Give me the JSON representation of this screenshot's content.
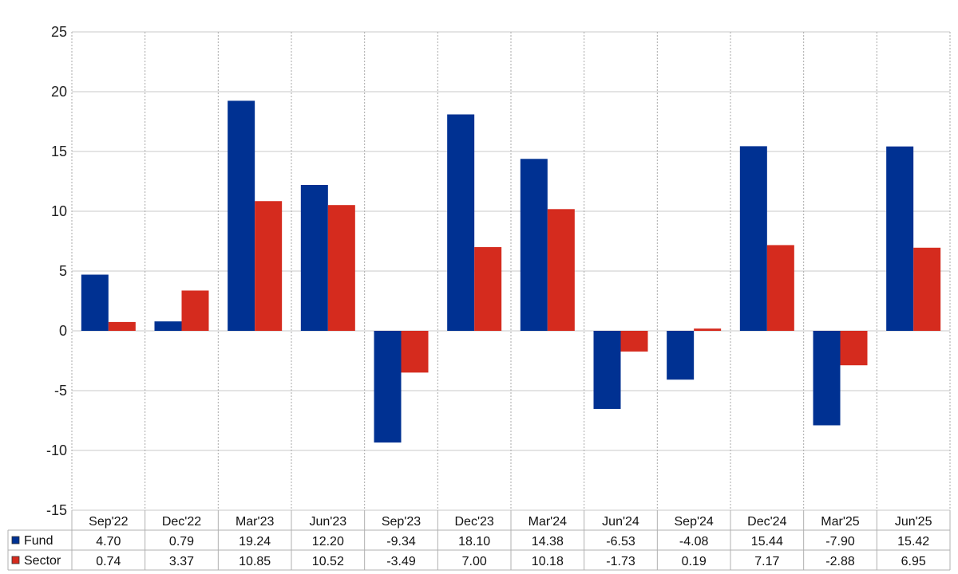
{
  "chart_data": {
    "type": "bar",
    "categories": [
      "Sep'22",
      "Dec'22",
      "Mar'23",
      "Jun'23",
      "Sep'23",
      "Dec'23",
      "Mar'24",
      "Jun'24",
      "Sep'24",
      "Dec'24",
      "Mar'25",
      "Jun'25"
    ],
    "series": [
      {
        "name": "Fund",
        "color": "#003192",
        "values": [
          4.7,
          0.79,
          19.24,
          12.2,
          -9.34,
          18.1,
          14.38,
          -6.53,
          -4.08,
          15.44,
          -7.9,
          15.42
        ],
        "labels": [
          "4.70",
          "0.79",
          "19.24",
          "12.20",
          "-9.34",
          "18.10",
          "14.38",
          "-6.53",
          "-4.08",
          "15.44",
          "-7.90",
          "15.42"
        ]
      },
      {
        "name": "Sector",
        "color": "#d52b1e",
        "values": [
          0.74,
          3.37,
          10.85,
          10.52,
          -3.49,
          7.0,
          10.18,
          -1.73,
          0.19,
          7.17,
          -2.88,
          6.95
        ],
        "labels": [
          "0.74",
          "3.37",
          "10.85",
          "10.52",
          "-3.49",
          "7.00",
          "10.18",
          "-1.73",
          "0.19",
          "7.17",
          "-2.88",
          "6.95"
        ]
      }
    ],
    "ylim": [
      -15,
      25
    ],
    "yticks": [
      "25",
      "20",
      "15",
      "10",
      "5",
      "0",
      "-5",
      "-10",
      "-15"
    ],
    "negative_color": "#ff0000",
    "grid": true,
    "legend": "data-table-bottom"
  }
}
